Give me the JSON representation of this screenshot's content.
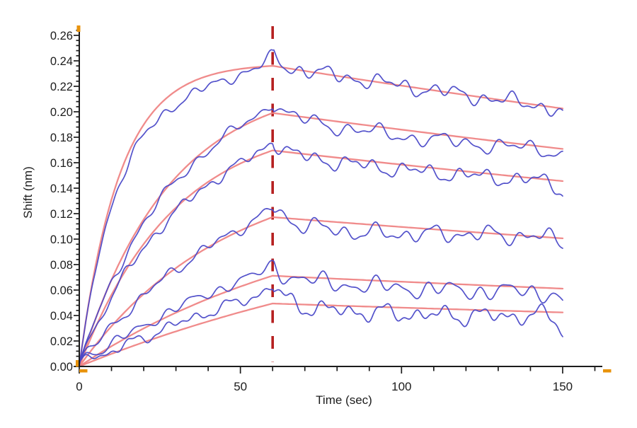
{
  "page": {
    "background": "#ffffff"
  },
  "chart_data": {
    "type": "line",
    "title": "",
    "xlabel": "Time (sec)",
    "ylabel": "Shift (nm)",
    "xlim": [
      0,
      162
    ],
    "ylim": [
      0,
      0.267
    ],
    "grid": "off",
    "legend": "none",
    "x_tick_labels": [
      "0",
      "50",
      "100",
      "150"
    ],
    "x_major_ticks_sec": [
      0,
      50,
      100,
      150
    ],
    "x_minor_step_sec": 10,
    "y_tick_labels": [
      "0.00",
      "0.02",
      "0.04",
      "0.06",
      "0.08",
      "0.10",
      "0.12",
      "0.14",
      "0.16",
      "0.18",
      "0.20",
      "0.22",
      "0.24",
      "0.26"
    ],
    "y_major_step_nm": 0.02,
    "y_minor_step_nm": 0.004,
    "association_end_sec": 60,
    "event_line": {
      "time_sec": 60,
      "style": "dashed",
      "color": "#b62020"
    },
    "colors": {
      "data_trace": "#4a49c8",
      "fit_trace": "#ef8181",
      "axis": "#1c1c1c",
      "text": "#1c1c1c",
      "range_marker_orange": "#e8930c"
    },
    "series": [
      {
        "id": "trace-1",
        "fit": {
          "rmax_nm": 0.238,
          "kobs_per_sec": 0.08,
          "kdiss_per_sec": 0.0017
        },
        "fit_points": [
          [
            0,
            0
          ],
          [
            30,
            0.216
          ],
          [
            60,
            0.236
          ],
          [
            100,
            0.221
          ],
          [
            150,
            0.202
          ]
        ],
        "data_summary": {
          "peak_at_60s_nm": 0.243,
          "end_at_150s_nm": 0.2
        },
        "noise_model": {
          "sa": 0.0028,
          "sd": 0.0042,
          "p1": 8.3,
          "p2": 19,
          "p3": 4.7,
          "f1": 0.4,
          "f2": 1.3,
          "f3": 4.1,
          "abm": -0.011,
          "abe": 0.002,
          "db": 0.0,
          "dc": 100,
          "dw": 40,
          "sp": 0.006,
          "dip": 0.005,
          "j": 0.0
        }
      },
      {
        "id": "trace-2",
        "fit": {
          "rmax_nm": 0.225,
          "kobs_per_sec": 0.036,
          "kdiss_per_sec": 0.0017
        },
        "fit_points": [
          [
            0,
            0
          ],
          [
            30,
            0.149
          ],
          [
            60,
            0.2
          ],
          [
            100,
            0.187
          ],
          [
            150,
            0.172
          ]
        ],
        "data_summary": {
          "peak_at_60s_nm": 0.207,
          "end_at_150s_nm": 0.172
        },
        "noise_model": {
          "sa": 0.003,
          "sd": 0.0042,
          "p1": 9.4,
          "p2": 22,
          "p3": 5.2,
          "f1": 2.2,
          "f2": 0.5,
          "f3": 1.8,
          "abm": -0.004,
          "abe": 0.004,
          "db": -0.005,
          "dc": 100,
          "dw": 35,
          "sp": 0.005,
          "dip": 0.003,
          "j": 0.003
        }
      },
      {
        "id": "trace-3",
        "fit": {
          "rmax_nm": 0.195,
          "kobs_per_sec": 0.034,
          "kdiss_per_sec": 0.0017
        },
        "fit_points": [
          [
            0,
            0
          ],
          [
            30,
            0.125
          ],
          [
            60,
            0.169
          ],
          [
            100,
            0.158
          ],
          [
            150,
            0.146
          ]
        ],
        "data_summary": {
          "peak_at_60s_nm": 0.177,
          "end_at_150s_nm": 0.14
        },
        "noise_model": {
          "sa": 0.003,
          "sd": 0.0042,
          "p1": 8.7,
          "p2": 18,
          "p3": 4.5,
          "f1": 4.5,
          "f2": 2.7,
          "f3": 0.3,
          "abm": -0.004,
          "abe": 0.003,
          "db": -0.004,
          "dc": 95,
          "dw": 35,
          "sp": 0.005,
          "dip": 0.008,
          "j": 0.005
        }
      },
      {
        "id": "trace-4",
        "fit": {
          "rmax_nm": 0.16,
          "kobs_per_sec": 0.022,
          "kdiss_per_sec": 0.0017
        },
        "fit_points": [
          [
            0,
            0
          ],
          [
            30,
            0.077
          ],
          [
            60,
            0.117
          ],
          [
            100,
            0.109
          ],
          [
            150,
            0.1
          ]
        ],
        "data_summary": {
          "peak_at_60s_nm": 0.124,
          "end_at_150s_nm": 0.1
        },
        "noise_model": {
          "sa": 0.0031,
          "sd": 0.0046,
          "p1": 9.1,
          "p2": 17,
          "p3": 4.9,
          "f1": 1.1,
          "f2": 5.1,
          "f3": 2.9,
          "abm": -0.002,
          "abe": 0.004,
          "db": -0.007,
          "dc": 85,
          "dw": 22,
          "sp": 0.004,
          "dip": 0.003,
          "j": 0.007
        }
      },
      {
        "id": "trace-5",
        "fit": {
          "rmax_nm": 0.135,
          "kobs_per_sec": 0.0125,
          "kdiss_per_sec": 0.0017
        },
        "fit_points": [
          [
            0,
            0
          ],
          [
            30,
            0.042
          ],
          [
            60,
            0.071
          ],
          [
            100,
            0.066
          ],
          [
            150,
            0.061
          ]
        ],
        "data_summary": {
          "peak_at_60s_nm": 0.08,
          "end_at_150s_nm": 0.052
        },
        "noise_model": {
          "sa": 0.003,
          "sd": 0.0048,
          "p1": 8.1,
          "p2": 20,
          "p3": 5.4,
          "f1": 5.7,
          "f2": 3.5,
          "f3": 1.2,
          "abm": 0.002,
          "abe": 0.005,
          "db": -0.005,
          "dc": 105,
          "dw": 40,
          "sp": 0.004,
          "dip": 0.009,
          "j": 0.007
        }
      },
      {
        "id": "trace-6",
        "fit": {
          "rmax_nm": 0.135,
          "kobs_per_sec": 0.0076,
          "kdiss_per_sec": 0.0017
        },
        "fit_points": [
          [
            0,
            0
          ],
          [
            30,
            0.028
          ],
          [
            60,
            0.049
          ],
          [
            100,
            0.046
          ],
          [
            150,
            0.042
          ]
        ],
        "data_summary": {
          "peak_at_60s_nm": 0.063,
          "end_at_150s_nm": 0.032
        },
        "noise_model": {
          "sa": 0.0031,
          "sd": 0.0048,
          "p1": 9.7,
          "p2": 16,
          "p3": 4.3,
          "f1": 3.1,
          "f2": 2.0,
          "f3": 5.3,
          "abm": 0.003,
          "abe": 0.01,
          "db": -0.005,
          "dc": 105,
          "dw": 40,
          "sp": 0.004,
          "dip": 0.01,
          "j": 0.007
        }
      }
    ]
  }
}
